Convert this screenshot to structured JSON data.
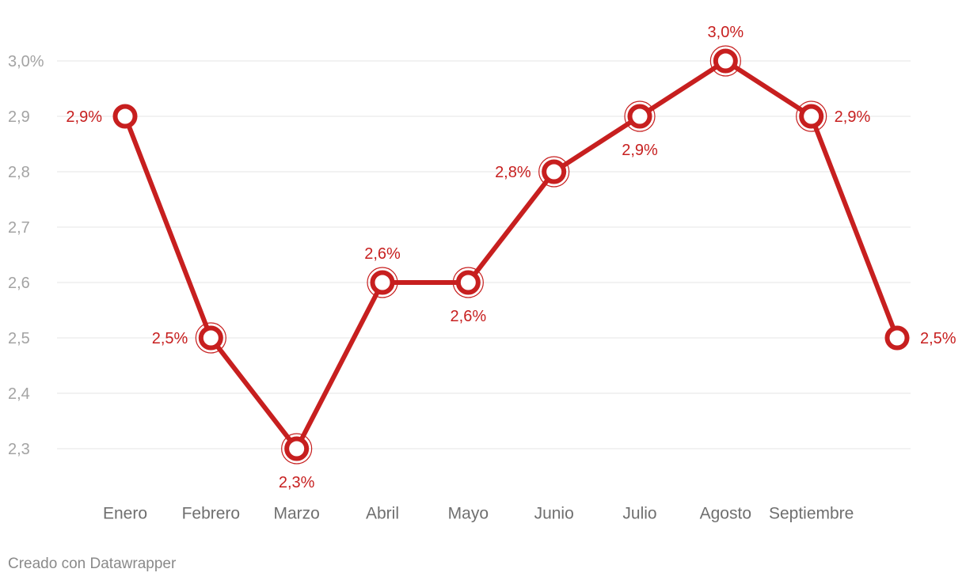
{
  "chart_data": {
    "type": "line",
    "categories": [
      "Enero",
      "Febrero",
      "Marzo",
      "Abril",
      "Mayo",
      "Junio",
      "Julio",
      "Agosto",
      "Septiembre",
      ""
    ],
    "series": [
      {
        "values": [
          2.9,
          2.5,
          2.3,
          2.6,
          2.6,
          2.8,
          2.9,
          3.0,
          2.9,
          2.5
        ]
      }
    ],
    "data_labels": [
      "2,9%",
      "2,5%",
      "2,3%",
      "2,6%",
      "2,6%",
      "2,8%",
      "2,9%",
      "3,0%",
      "2,9%",
      "2,5%"
    ],
    "label_positions": [
      "left",
      "left",
      "below",
      "above",
      "below",
      "left",
      "below",
      "above",
      "right",
      "right"
    ],
    "yticks": [
      {
        "value": 3.0,
        "label": "3,0%"
      },
      {
        "value": 2.9,
        "label": "2,9"
      },
      {
        "value": 2.8,
        "label": "2,8"
      },
      {
        "value": 2.7,
        "label": "2,7"
      },
      {
        "value": 2.6,
        "label": "2,6"
      },
      {
        "value": 2.5,
        "label": "2,5"
      },
      {
        "value": 2.4,
        "label": "2,4"
      },
      {
        "value": 2.3,
        "label": "2,3"
      }
    ],
    "ylim": [
      2.3,
      3.0
    ],
    "grid": true,
    "colors": {
      "line": "#c71f1f",
      "grid": "#e4e4e4",
      "point_fill": "#ffffff"
    }
  },
  "footer": {
    "credit": "Creado con Datawrapper"
  }
}
